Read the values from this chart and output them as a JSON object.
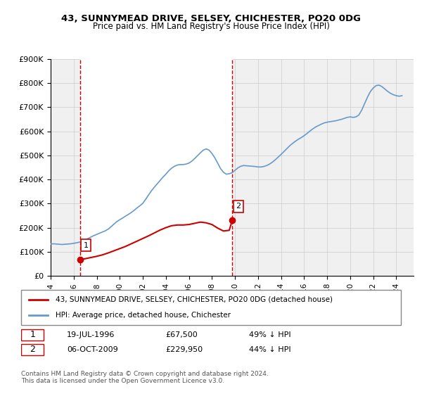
{
  "title": "43, SUNNYMEAD DRIVE, SELSEY, CHICHESTER, PO20 0DG",
  "subtitle": "Price paid vs. HM Land Registry's House Price Index (HPI)",
  "legend_line1": "43, SUNNYMEAD DRIVE, SELSEY, CHICHESTER, PO20 0DG (detached house)",
  "legend_line2": "HPI: Average price, detached house, Chichester",
  "sale1_date": "19-JUL-1996",
  "sale1_price": 67500,
  "sale1_hpi_pct": "49% ↓ HPI",
  "sale2_date": "06-OCT-2009",
  "sale2_price": 229950,
  "sale2_hpi_pct": "44% ↓ HPI",
  "footnote": "Contains HM Land Registry data © Crown copyright and database right 2024.\nThis data is licensed under the Open Government Licence v3.0.",
  "hpi_color": "#6699cc",
  "price_color": "#cc0000",
  "vline_color": "#cc0000",
  "background_color": "#ffffff",
  "grid_color": "#cccccc",
  "hatch_color": "#e8e8e8",
  "ylim": [
    0,
    900000
  ],
  "xlim_start": 1994.0,
  "xlim_end": 2025.5,
  "sale1_x": 1996.54,
  "sale2_x": 2009.76,
  "hpi_data_x": [
    1994.0,
    1994.25,
    1994.5,
    1994.75,
    1995.0,
    1995.25,
    1995.5,
    1995.75,
    1996.0,
    1996.25,
    1996.5,
    1996.75,
    1997.0,
    1997.25,
    1997.5,
    1997.75,
    1998.0,
    1998.25,
    1998.5,
    1998.75,
    1999.0,
    1999.25,
    1999.5,
    1999.75,
    2000.0,
    2000.25,
    2000.5,
    2000.75,
    2001.0,
    2001.25,
    2001.5,
    2001.75,
    2002.0,
    2002.25,
    2002.5,
    2002.75,
    2003.0,
    2003.25,
    2003.5,
    2003.75,
    2004.0,
    2004.25,
    2004.5,
    2004.75,
    2005.0,
    2005.25,
    2005.5,
    2005.75,
    2006.0,
    2006.25,
    2006.5,
    2006.75,
    2007.0,
    2007.25,
    2007.5,
    2007.75,
    2008.0,
    2008.25,
    2008.5,
    2008.75,
    2009.0,
    2009.25,
    2009.5,
    2009.75,
    2010.0,
    2010.25,
    2010.5,
    2010.75,
    2011.0,
    2011.25,
    2011.5,
    2011.75,
    2012.0,
    2012.25,
    2012.5,
    2012.75,
    2013.0,
    2013.25,
    2013.5,
    2013.75,
    2014.0,
    2014.25,
    2014.5,
    2014.75,
    2015.0,
    2015.25,
    2015.5,
    2015.75,
    2016.0,
    2016.25,
    2016.5,
    2016.75,
    2017.0,
    2017.25,
    2017.5,
    2017.75,
    2018.0,
    2018.25,
    2018.5,
    2018.75,
    2019.0,
    2019.25,
    2019.5,
    2019.75,
    2020.0,
    2020.25,
    2020.5,
    2020.75,
    2021.0,
    2021.25,
    2021.5,
    2021.75,
    2022.0,
    2022.25,
    2022.5,
    2022.75,
    2023.0,
    2023.25,
    2023.5,
    2023.75,
    2024.0,
    2024.25,
    2024.5
  ],
  "hpi_data_y": [
    132000,
    133000,
    132000,
    131000,
    130000,
    131000,
    132000,
    133000,
    135000,
    137000,
    140000,
    143000,
    148000,
    155000,
    161000,
    167000,
    172000,
    177000,
    182000,
    187000,
    194000,
    204000,
    215000,
    225000,
    233000,
    240000,
    248000,
    255000,
    263000,
    272000,
    282000,
    291000,
    301000,
    318000,
    336000,
    353000,
    368000,
    382000,
    396000,
    410000,
    422000,
    436000,
    447000,
    455000,
    460000,
    462000,
    462000,
    464000,
    468000,
    476000,
    487000,
    499000,
    511000,
    522000,
    527000,
    522000,
    508000,
    490000,
    468000,
    445000,
    430000,
    422000,
    424000,
    428000,
    438000,
    448000,
    455000,
    458000,
    457000,
    456000,
    455000,
    454000,
    452000,
    452000,
    454000,
    458000,
    464000,
    472000,
    482000,
    493000,
    504000,
    516000,
    528000,
    540000,
    550000,
    559000,
    567000,
    574000,
    582000,
    591000,
    601000,
    610000,
    618000,
    624000,
    630000,
    635000,
    638000,
    640000,
    642000,
    644000,
    647000,
    650000,
    654000,
    658000,
    660000,
    658000,
    660000,
    668000,
    688000,
    715000,
    742000,
    765000,
    780000,
    790000,
    792000,
    786000,
    776000,
    766000,
    758000,
    752000,
    748000,
    746000,
    748000
  ],
  "price_data_x": [
    1996.54,
    2009.76
  ],
  "price_data_y": [
    67500,
    229950
  ],
  "price_line_x": [
    1996.54,
    1997.0,
    1997.5,
    1998.0,
    1998.5,
    1999.0,
    1999.5,
    2000.0,
    2000.5,
    2001.0,
    2001.5,
    2002.0,
    2002.5,
    2003.0,
    2003.5,
    2004.0,
    2004.5,
    2005.0,
    2005.5,
    2006.0,
    2006.5,
    2007.0,
    2007.5,
    2008.0,
    2008.5,
    2009.0,
    2009.5,
    2009.76
  ],
  "price_line_y": [
    67500,
    71000,
    76000,
    81000,
    87000,
    95000,
    104000,
    113000,
    122000,
    133000,
    144000,
    155000,
    166000,
    178000,
    190000,
    200000,
    208000,
    211000,
    211000,
    213000,
    218000,
    223000,
    220000,
    213000,
    198000,
    186000,
    189000,
    229950
  ]
}
